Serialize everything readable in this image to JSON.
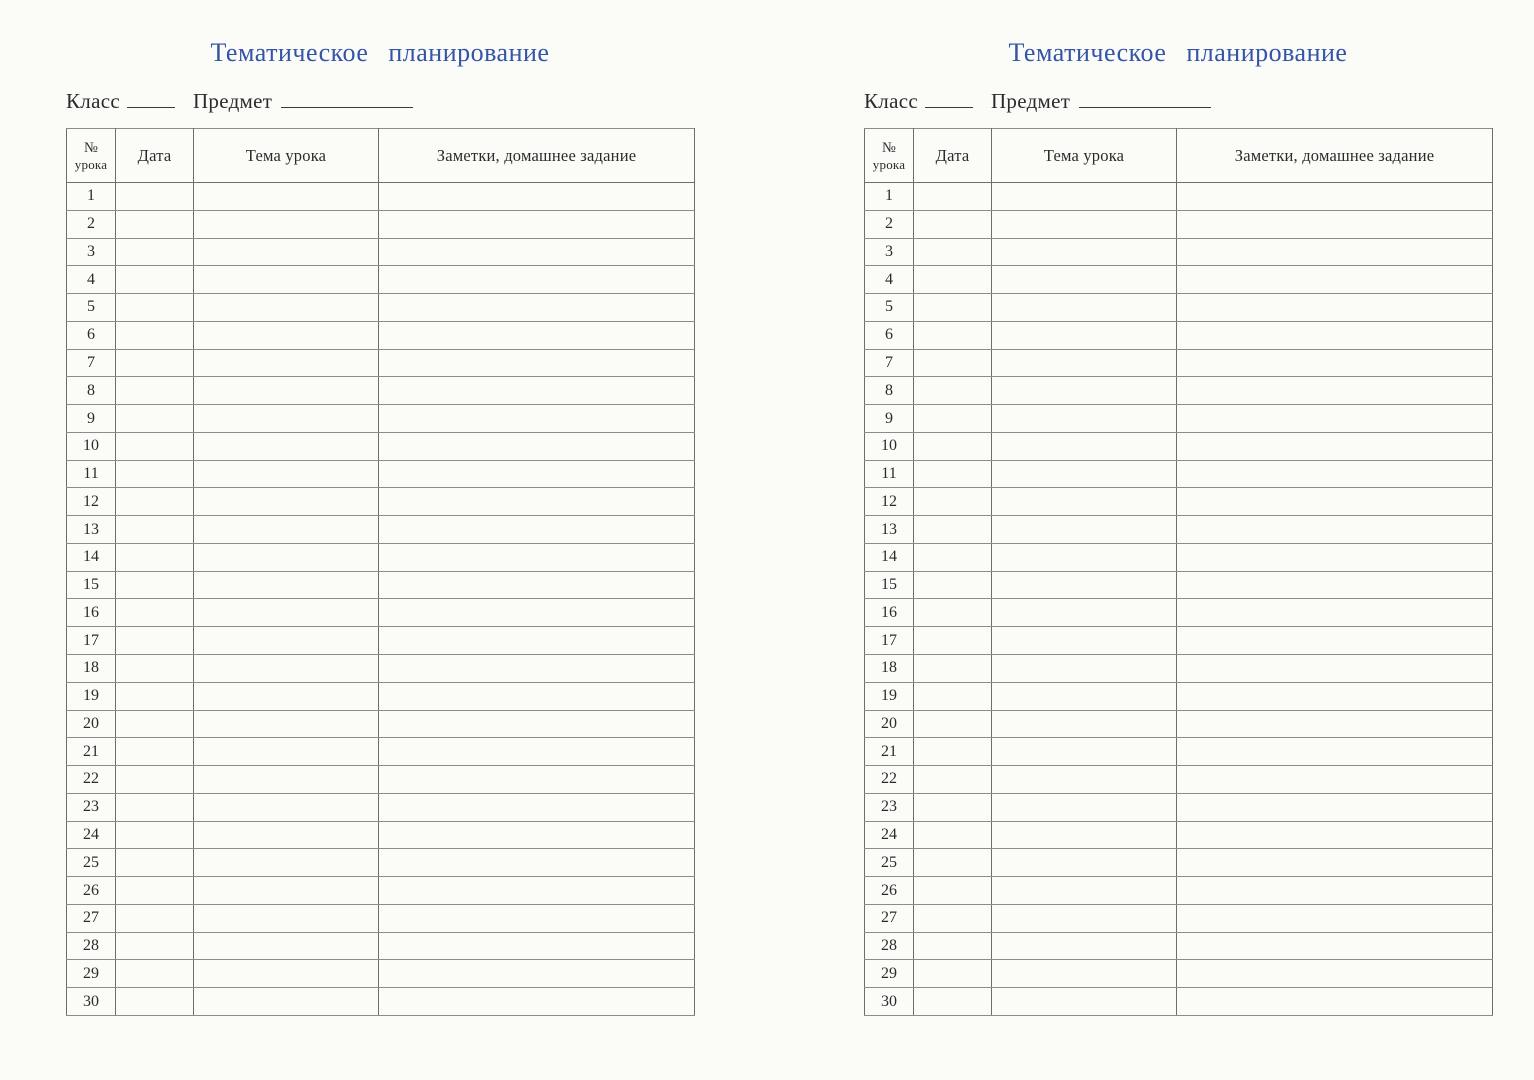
{
  "document": {
    "kind": "scanned teacher planner spread, two identical pages",
    "colors": {
      "title_blue": "#3354a7",
      "text": "#2b2b2b",
      "table_border": "#6d6d6d",
      "background": "#fbfbf8"
    },
    "page": {
      "title": "Тематическое планирование",
      "class_label": "Класс",
      "subject_label": "Предмет",
      "class_value": "",
      "subject_value": "",
      "table": {
        "header": {
          "lesson_number_line1": "№",
          "lesson_number_line2": "урока",
          "date": "Дата",
          "topic": "Тема урока",
          "notes": "Заметки, домашнее задание"
        },
        "rows": [
          {
            "num": "1",
            "date": "",
            "topic": "",
            "notes": ""
          },
          {
            "num": "2",
            "date": "",
            "topic": "",
            "notes": ""
          },
          {
            "num": "3",
            "date": "",
            "topic": "",
            "notes": ""
          },
          {
            "num": "4",
            "date": "",
            "topic": "",
            "notes": ""
          },
          {
            "num": "5",
            "date": "",
            "topic": "",
            "notes": ""
          },
          {
            "num": "6",
            "date": "",
            "topic": "",
            "notes": ""
          },
          {
            "num": "7",
            "date": "",
            "topic": "",
            "notes": ""
          },
          {
            "num": "8",
            "date": "",
            "topic": "",
            "notes": ""
          },
          {
            "num": "9",
            "date": "",
            "topic": "",
            "notes": ""
          },
          {
            "num": "10",
            "date": "",
            "topic": "",
            "notes": ""
          },
          {
            "num": "11",
            "date": "",
            "topic": "",
            "notes": ""
          },
          {
            "num": "12",
            "date": "",
            "topic": "",
            "notes": ""
          },
          {
            "num": "13",
            "date": "",
            "topic": "",
            "notes": ""
          },
          {
            "num": "14",
            "date": "",
            "topic": "",
            "notes": ""
          },
          {
            "num": "15",
            "date": "",
            "topic": "",
            "notes": ""
          },
          {
            "num": "16",
            "date": "",
            "topic": "",
            "notes": ""
          },
          {
            "num": "17",
            "date": "",
            "topic": "",
            "notes": ""
          },
          {
            "num": "18",
            "date": "",
            "topic": "",
            "notes": ""
          },
          {
            "num": "19",
            "date": "",
            "topic": "",
            "notes": ""
          },
          {
            "num": "20",
            "date": "",
            "topic": "",
            "notes": ""
          },
          {
            "num": "21",
            "date": "",
            "topic": "",
            "notes": ""
          },
          {
            "num": "22",
            "date": "",
            "topic": "",
            "notes": ""
          },
          {
            "num": "23",
            "date": "",
            "topic": "",
            "notes": ""
          },
          {
            "num": "24",
            "date": "",
            "topic": "",
            "notes": ""
          },
          {
            "num": "25",
            "date": "",
            "topic": "",
            "notes": ""
          },
          {
            "num": "26",
            "date": "",
            "topic": "",
            "notes": ""
          },
          {
            "num": "27",
            "date": "",
            "topic": "",
            "notes": ""
          },
          {
            "num": "28",
            "date": "",
            "topic": "",
            "notes": ""
          },
          {
            "num": "29",
            "date": "",
            "topic": "",
            "notes": ""
          },
          {
            "num": "30",
            "date": "",
            "topic": "",
            "notes": ""
          }
        ]
      }
    }
  }
}
